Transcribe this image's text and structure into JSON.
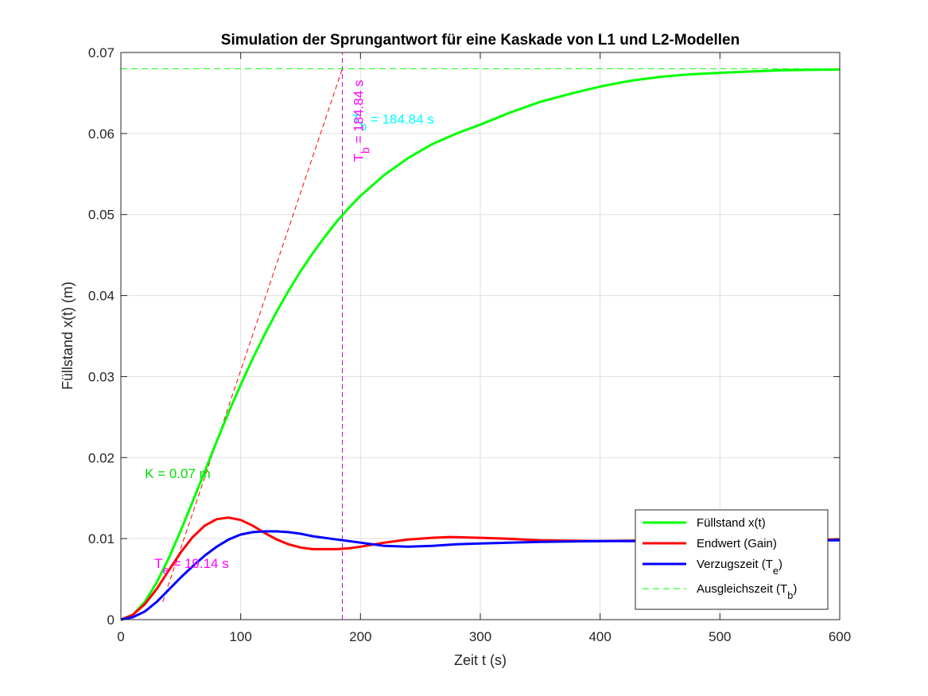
{
  "chart_data": {
    "type": "line",
    "title": "Simulation der Sprungantwort für eine Kaskade von L1 und L2-Modellen",
    "xlabel": "Zeit t (s)",
    "ylabel": "Füllstand x(t) (m)",
    "xlim": [
      0,
      600
    ],
    "ylim": [
      0,
      0.07
    ],
    "x_ticks": [
      0,
      100,
      200,
      300,
      400,
      500,
      600
    ],
    "x_tick_labels": [
      "0",
      "100",
      "200",
      "300",
      "400",
      "500",
      "600"
    ],
    "y_ticks": [
      0,
      0.01,
      0.02,
      0.03,
      0.04,
      0.05,
      0.06,
      0.07
    ],
    "y_tick_labels": [
      "0",
      "0.01",
      "0.02",
      "0.03",
      "0.04",
      "0.05",
      "0.06",
      "0.07"
    ],
    "grid": true,
    "legend_position": "bottom-right",
    "series": [
      {
        "name": "Füllstand x(t)",
        "color": "#00ff00",
        "style": "solid",
        "x": [
          0,
          10,
          20,
          30,
          40,
          50,
          60,
          70,
          80,
          90,
          100,
          110,
          120,
          130,
          140,
          150,
          160,
          170,
          180,
          190,
          200,
          220,
          240,
          260,
          280,
          300,
          325,
          350,
          375,
          400,
          425,
          450,
          475,
          500,
          550,
          600
        ],
        "y": [
          0,
          0.0006,
          0.0022,
          0.0046,
          0.0076,
          0.011,
          0.0146,
          0.0183,
          0.022,
          0.0256,
          0.029,
          0.0322,
          0.0352,
          0.038,
          0.0406,
          0.043,
          0.0452,
          0.0472,
          0.0491,
          0.0508,
          0.0523,
          0.0549,
          0.057,
          0.0587,
          0.06,
          0.0611,
          0.0626,
          0.0639,
          0.0649,
          0.0658,
          0.0665,
          0.067,
          0.0673,
          0.0675,
          0.0678,
          0.0679
        ]
      },
      {
        "name": "Endwert (Gain)",
        "color": "#ff0000",
        "style": "solid",
        "x": [
          0,
          10,
          20,
          30,
          40,
          50,
          60,
          70,
          80,
          90,
          100,
          110,
          120,
          130,
          140,
          150,
          160,
          170,
          180,
          190,
          200,
          220,
          240,
          260,
          275,
          300,
          320,
          350,
          400,
          450,
          500,
          550,
          600
        ],
        "y": [
          0,
          0.0006,
          0.0019,
          0.0038,
          0.0061,
          0.0083,
          0.0102,
          0.0116,
          0.0124,
          0.0126,
          0.0123,
          0.0116,
          0.0107,
          0.0099,
          0.0093,
          0.0089,
          0.0087,
          0.0087,
          0.0087,
          0.0088,
          0.009,
          0.0095,
          0.0099,
          0.0101,
          0.0102,
          0.0101,
          0.01,
          0.0098,
          0.0097,
          0.0098,
          0.0099,
          0.0099,
          0.0099
        ]
      },
      {
        "name": "Verzugszeit (T_e)",
        "color": "#0000ff",
        "style": "solid",
        "x": [
          0,
          10,
          20,
          30,
          40,
          50,
          60,
          70,
          80,
          90,
          100,
          110,
          120,
          130,
          140,
          150,
          160,
          180,
          200,
          220,
          240,
          260,
          280,
          300,
          350,
          400,
          450,
          500,
          550,
          600
        ],
        "y": [
          0,
          0.0003,
          0.001,
          0.0022,
          0.0037,
          0.0052,
          0.0066,
          0.0079,
          0.009,
          0.0099,
          0.0105,
          0.0108,
          0.0109,
          0.0109,
          0.0108,
          0.0106,
          0.0103,
          0.0099,
          0.0095,
          0.0091,
          0.009,
          0.0091,
          0.0093,
          0.0094,
          0.0096,
          0.0097,
          0.0097,
          0.0097,
          0.0098,
          0.0098
        ]
      },
      {
        "name": "Ausgleichszeit (T_b)",
        "color": "#00ff00",
        "style": "dashed",
        "x": [
          0,
          600
        ],
        "y": [
          0.068,
          0.068
        ]
      }
    ],
    "extra_lines": [
      {
        "color": "#ff0000",
        "style": "dashed",
        "x": [
          35,
          184.84
        ],
        "y": [
          0.0022,
          0.068
        ]
      },
      {
        "color": "#cc00cc",
        "style": "dashed",
        "x": [
          184.84,
          184.84
        ],
        "y": [
          0,
          0.07
        ]
      }
    ],
    "annotations": [
      {
        "text": "K = 0.07 m",
        "color": "#00dd00",
        "x": 20,
        "y": 0.0175,
        "rotate": 0
      },
      {
        "text": "T_e = 19.14 s",
        "color": "#ff00ff",
        "x": 28,
        "y": 0.0064,
        "rotate": 0
      },
      {
        "text": "T_b = 184.84 s",
        "color": "#00ffff",
        "x": 193,
        "y": 0.0612,
        "rotate": 0
      },
      {
        "text": "T_b = 184.84 s",
        "color": "#ff00ff",
        "x": 202,
        "y": 0.0565,
        "rotate": -90
      }
    ]
  }
}
